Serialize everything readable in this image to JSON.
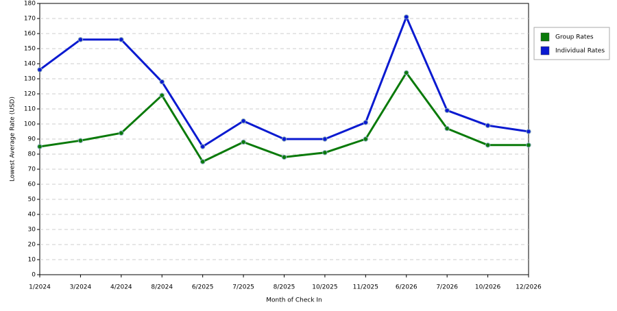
{
  "chart_data": {
    "type": "line",
    "xlabel": "Month of Check In",
    "ylabel": "Lowest Average Rate (USD)",
    "categories": [
      "1/2024",
      "3/2024",
      "4/2024",
      "8/2024",
      "6/2025",
      "7/2025",
      "8/2025",
      "10/2025",
      "11/2025",
      "6/2026",
      "7/2026",
      "10/2026",
      "12/2026"
    ],
    "series": [
      {
        "name": "Group Rates",
        "color": "#0a7a0a",
        "values": [
          85,
          89,
          94,
          119,
          75,
          88,
          78,
          81,
          90,
          134,
          97,
          86,
          86
        ]
      },
      {
        "name": "Individual Rates",
        "color": "#0a1ad0",
        "values": [
          136,
          156,
          156,
          128,
          85,
          102,
          90,
          90,
          101,
          171,
          109,
          99,
          95
        ]
      }
    ],
    "ylim": [
      0,
      180
    ],
    "yticks": [
      0,
      10,
      20,
      30,
      40,
      50,
      60,
      70,
      80,
      90,
      100,
      110,
      120,
      130,
      140,
      150,
      160,
      170,
      180
    ],
    "grid": true,
    "legend": "right"
  }
}
